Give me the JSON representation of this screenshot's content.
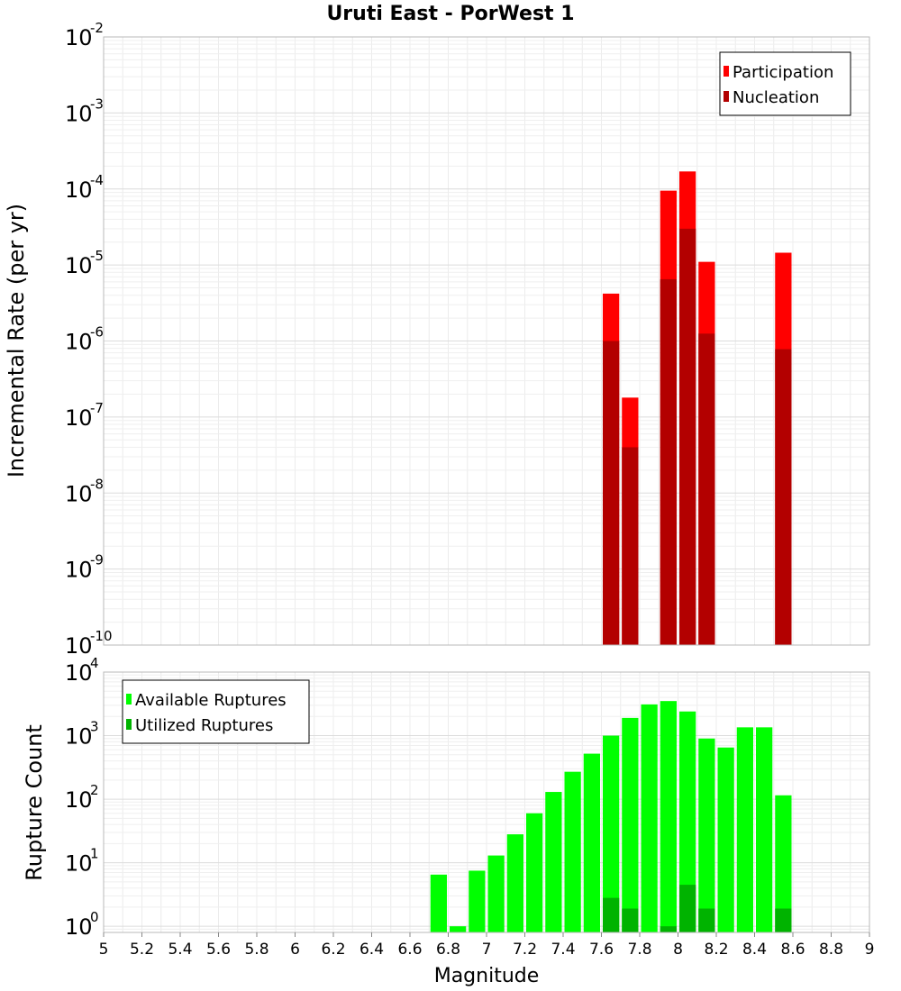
{
  "chart_data": [
    {
      "type": "bar",
      "title": "Uruti East - PorWest 1",
      "ylabel": "Incremental Rate (per yr)",
      "xlabel": "",
      "y_scale": "log",
      "ylim": [
        1e-10,
        0.01
      ],
      "xlim": [
        5,
        9
      ],
      "y_tick_exponents": [
        "-10",
        "-9",
        "-8",
        "-7",
        "-6",
        "-5",
        "-4",
        "-3",
        "-2"
      ],
      "legend_position": "top-right",
      "grid": true,
      "bin_width": 0.1,
      "series": [
        {
          "name": "Participation",
          "color": "#ff0000",
          "points": [
            {
              "x": 7.65,
              "y": 4.2e-06
            },
            {
              "x": 7.75,
              "y": 1.8e-07
            },
            {
              "x": 7.95,
              "y": 9.5e-05
            },
            {
              "x": 8.05,
              "y": 0.00017
            },
            {
              "x": 8.15,
              "y": 1.1e-05
            },
            {
              "x": 8.55,
              "y": 1.45e-05
            }
          ]
        },
        {
          "name": "Nucleation",
          "color": "#b30000",
          "points": [
            {
              "x": 7.65,
              "y": 1e-06
            },
            {
              "x": 7.75,
              "y": 4e-08
            },
            {
              "x": 7.95,
              "y": 6.5e-06
            },
            {
              "x": 8.05,
              "y": 3e-05
            },
            {
              "x": 8.15,
              "y": 1.25e-06
            },
            {
              "x": 8.55,
              "y": 7.8e-07
            }
          ]
        }
      ]
    },
    {
      "type": "bar",
      "title": "",
      "ylabel": "Rupture Count",
      "xlabel": "Magnitude",
      "y_scale": "log",
      "ylim": [
        0.8,
        10000
      ],
      "xlim": [
        5,
        9
      ],
      "y_tick_exponents": [
        "0",
        "1",
        "2",
        "3",
        "4"
      ],
      "x_ticks": [
        "5",
        "5.2",
        "5.4",
        "5.6",
        "5.8",
        "6",
        "6.2",
        "6.4",
        "6.6",
        "6.8",
        "7",
        "7.2",
        "7.4",
        "7.6",
        "7.8",
        "8",
        "8.2",
        "8.4",
        "8.6",
        "8.8",
        "9"
      ],
      "legend_position": "top-left",
      "grid": true,
      "bin_width": 0.1,
      "series": [
        {
          "name": "Available Ruptures",
          "color": "#00ff00",
          "points": [
            {
              "x": 6.75,
              "y": 6.5
            },
            {
              "x": 6.85,
              "y": 1
            },
            {
              "x": 6.95,
              "y": 7.5
            },
            {
              "x": 7.05,
              "y": 13
            },
            {
              "x": 7.15,
              "y": 28
            },
            {
              "x": 7.25,
              "y": 60
            },
            {
              "x": 7.35,
              "y": 130
            },
            {
              "x": 7.45,
              "y": 270
            },
            {
              "x": 7.55,
              "y": 520
            },
            {
              "x": 7.65,
              "y": 1000
            },
            {
              "x": 7.75,
              "y": 1900
            },
            {
              "x": 7.85,
              "y": 3100
            },
            {
              "x": 7.95,
              "y": 3500
            },
            {
              "x": 8.05,
              "y": 2400
            },
            {
              "x": 8.15,
              "y": 900
            },
            {
              "x": 8.25,
              "y": 650
            },
            {
              "x": 8.35,
              "y": 1350
            },
            {
              "x": 8.45,
              "y": 1350
            },
            {
              "x": 8.55,
              "y": 115
            }
          ]
        },
        {
          "name": "Utilized Ruptures",
          "color": "#00b300",
          "points": [
            {
              "x": 7.65,
              "y": 2.8
            },
            {
              "x": 7.75,
              "y": 1.9
            },
            {
              "x": 7.95,
              "y": 1
            },
            {
              "x": 8.05,
              "y": 4.5
            },
            {
              "x": 8.15,
              "y": 1.9
            },
            {
              "x": 8.55,
              "y": 1.9
            }
          ]
        }
      ]
    }
  ]
}
